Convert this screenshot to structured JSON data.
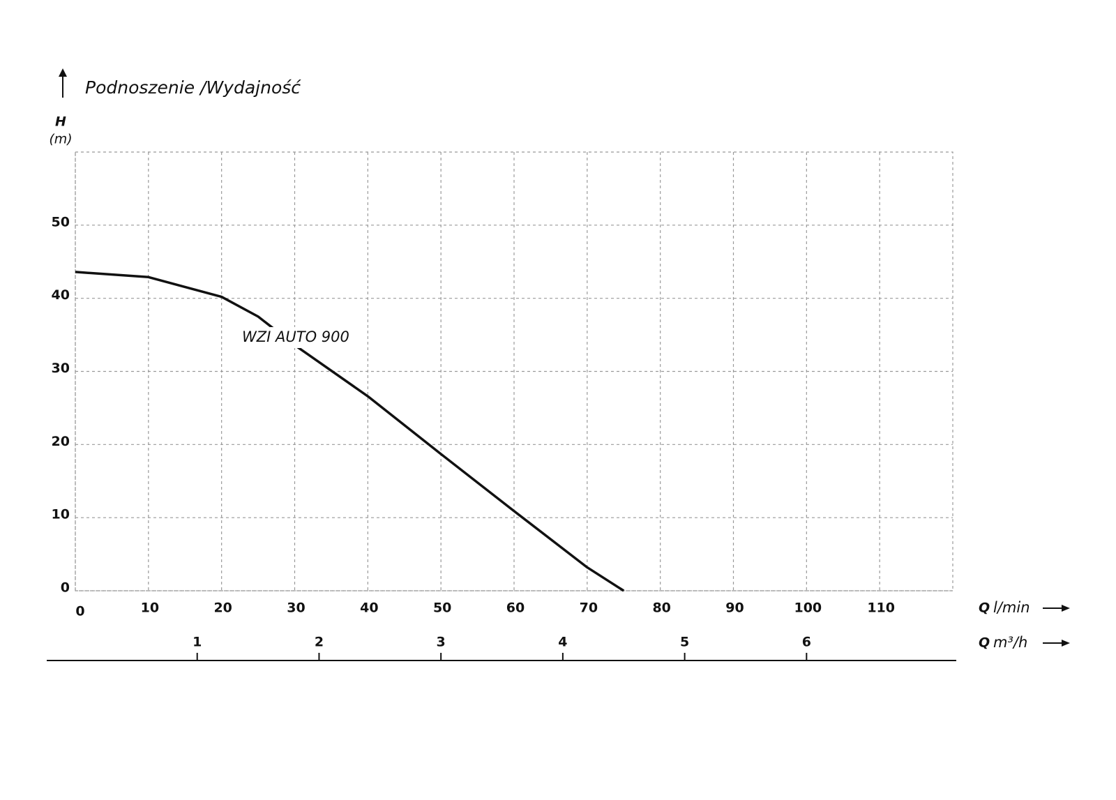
{
  "chart_data": {
    "type": "line",
    "title": "Podnoszenie /Wydajność",
    "y_label": "H",
    "y_unit": "(m)",
    "x_label": "Q",
    "x_unit": "l/min",
    "x2_label": "Q",
    "x2_unit": "m³/h",
    "x": [
      0,
      10,
      20,
      25,
      30,
      40,
      50,
      60,
      70,
      75
    ],
    "series": [
      {
        "name": "WZI AUTO 900",
        "color": "#111111",
        "values": [
          43.6,
          42.9,
          40.2,
          37.5,
          33.6,
          26.6,
          18.7,
          10.9,
          3.2,
          0
        ]
      }
    ],
    "xlim": [
      0,
      120
    ],
    "xticks": [
      0,
      10,
      20,
      30,
      40,
      50,
      60,
      70,
      80,
      90,
      100,
      110
    ],
    "ylim": [
      0,
      60
    ],
    "yticks": [
      0,
      10,
      20,
      30,
      40,
      50
    ],
    "x2lim": [
      0,
      7.2
    ],
    "x2ticks": [
      1,
      2,
      3,
      4,
      5,
      6
    ],
    "grid": true
  }
}
